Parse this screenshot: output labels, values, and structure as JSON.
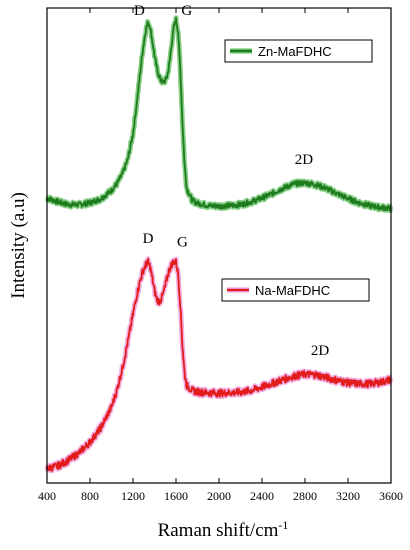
{
  "chart_data": {
    "type": "line",
    "xlabel": "Raman shift/cm",
    "xlabel_superscript": "-1",
    "ylabel": "Intensity (a.u)",
    "xlim": [
      400,
      3600
    ],
    "ylim": [
      0,
      100
    ],
    "x_ticks": [
      400,
      800,
      1200,
      1600,
      2000,
      2400,
      2800,
      3200,
      3600
    ],
    "y_ticks_shown": false,
    "grid": false,
    "legend": "per-series boxes at top-right of each spectrum",
    "series": [
      {
        "name": "Zn-MaFDHC",
        "color": "#1e7b1e",
        "band_color": "#5fbf5f",
        "x": [
          400,
          500,
          600,
          700,
          800,
          900,
          1000,
          1050,
          1100,
          1150,
          1200,
          1230,
          1260,
          1290,
          1320,
          1340,
          1360,
          1380,
          1400,
          1420,
          1440,
          1460,
          1480,
          1500,
          1520,
          1540,
          1560,
          1580,
          1600,
          1620,
          1640,
          1660,
          1680,
          1700,
          1750,
          1800,
          1900,
          2000,
          2100,
          2200,
          2300,
          2400,
          2500,
          2600,
          2700,
          2800,
          2900,
          3000,
          3100,
          3200,
          3300,
          3400,
          3500,
          3600
        ],
        "y": [
          60.0,
          59.2,
          58.6,
          58.6,
          59.0,
          59.8,
          61.6,
          63.0,
          65.0,
          68.0,
          73.5,
          79.0,
          85.0,
          91.0,
          95.5,
          97.0,
          96.0,
          93.0,
          90.0,
          87.5,
          85.8,
          84.7,
          84.4,
          84.7,
          85.8,
          88.5,
          92.5,
          96.0,
          97.5,
          95.0,
          87.0,
          76.0,
          67.0,
          62.0,
          59.5,
          58.9,
          58.4,
          58.3,
          58.4,
          58.6,
          59.2,
          60.0,
          61.0,
          62.1,
          63.0,
          63.2,
          62.8,
          62.0,
          60.9,
          59.9,
          59.0,
          58.4,
          58.0,
          57.8
        ]
      },
      {
        "name": "Na-MaFDHC",
        "color": "#e21b1b",
        "band_color": "#ee8fd6",
        "x": [
          400,
          500,
          600,
          700,
          800,
          900,
          1000,
          1050,
          1100,
          1150,
          1200,
          1230,
          1260,
          1290,
          1320,
          1340,
          1360,
          1380,
          1400,
          1420,
          1440,
          1460,
          1480,
          1500,
          1520,
          1540,
          1560,
          1580,
          1600,
          1620,
          1640,
          1660,
          1680,
          1700,
          1750,
          1800,
          1900,
          2000,
          2100,
          2200,
          2300,
          2400,
          2500,
          2600,
          2700,
          2800,
          2900,
          3000,
          3100,
          3200,
          3300,
          3400,
          3500,
          3600
        ],
        "y": [
          3.0,
          3.6,
          4.8,
          6.4,
          8.6,
          11.6,
          16.0,
          19.5,
          24.0,
          29.5,
          35.5,
          39.0,
          42.0,
          44.5,
          46.0,
          46.5,
          45.5,
          43.0,
          40.5,
          38.8,
          38.2,
          38.6,
          39.8,
          41.5,
          43.5,
          45.0,
          46.0,
          46.6,
          46.5,
          44.0,
          37.5,
          29.0,
          23.0,
          20.5,
          19.5,
          19.2,
          19.0,
          18.9,
          19.0,
          19.1,
          19.5,
          20.2,
          21.0,
          21.8,
          22.5,
          22.9,
          22.8,
          22.2,
          21.6,
          21.1,
          20.9,
          20.9,
          21.2,
          21.8
        ]
      }
    ],
    "annotations": [
      {
        "text": "D",
        "x": 1260,
        "y": 98.5
      },
      {
        "text": "G",
        "x": 1700,
        "y": 98.5
      },
      {
        "text": "2D",
        "x": 2790,
        "y": 67.2
      },
      {
        "text": "D",
        "x": 1340,
        "y": 50.5
      },
      {
        "text": "G",
        "x": 1660,
        "y": 49.8
      },
      {
        "text": "2D",
        "x": 2940,
        "y": 27.0
      }
    ]
  }
}
